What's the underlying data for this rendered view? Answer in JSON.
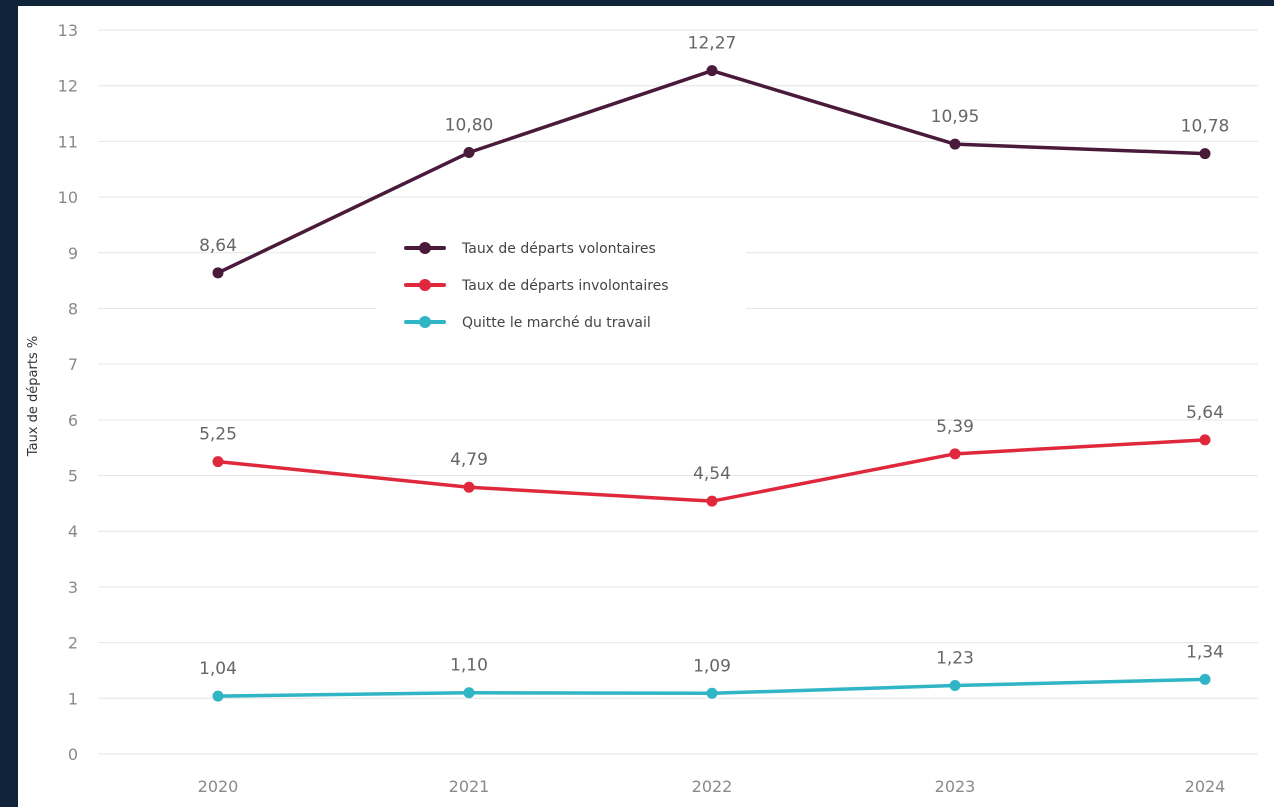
{
  "chart_data": {
    "type": "line",
    "title": "",
    "xlabel": "",
    "ylabel": "Taux de départs %",
    "categories": [
      "2020",
      "2021",
      "2022",
      "2023",
      "2024"
    ],
    "ylim": [
      0,
      13
    ],
    "yticks": [
      "0",
      "1",
      "2",
      "3",
      "4",
      "5",
      "6",
      "7",
      "8",
      "9",
      "10",
      "11",
      "12",
      "13"
    ],
    "grid": true,
    "legend_position": "center-left",
    "series": [
      {
        "name": "Taux de départs volontaires",
        "color": "#4a1a3a",
        "values": [
          8.64,
          10.8,
          12.27,
          10.95,
          10.78
        ],
        "labels": [
          "8,64",
          "10,80",
          "12,27",
          "10,95",
          "10,78"
        ]
      },
      {
        "name": "Taux de départs involontaires",
        "color": "#e0283c",
        "values": [
          5.25,
          4.79,
          4.54,
          5.39,
          5.64
        ],
        "labels": [
          "5,25",
          "4,79",
          "4,54",
          "5,39",
          "5,64"
        ]
      },
      {
        "name": "Quitte le marché du travail",
        "color": "#2fb5c5",
        "values": [
          1.04,
          1.1,
          1.09,
          1.23,
          1.34
        ],
        "labels": [
          "1,04",
          "1,10",
          "1,09",
          "1,23",
          "1,34"
        ]
      }
    ]
  }
}
